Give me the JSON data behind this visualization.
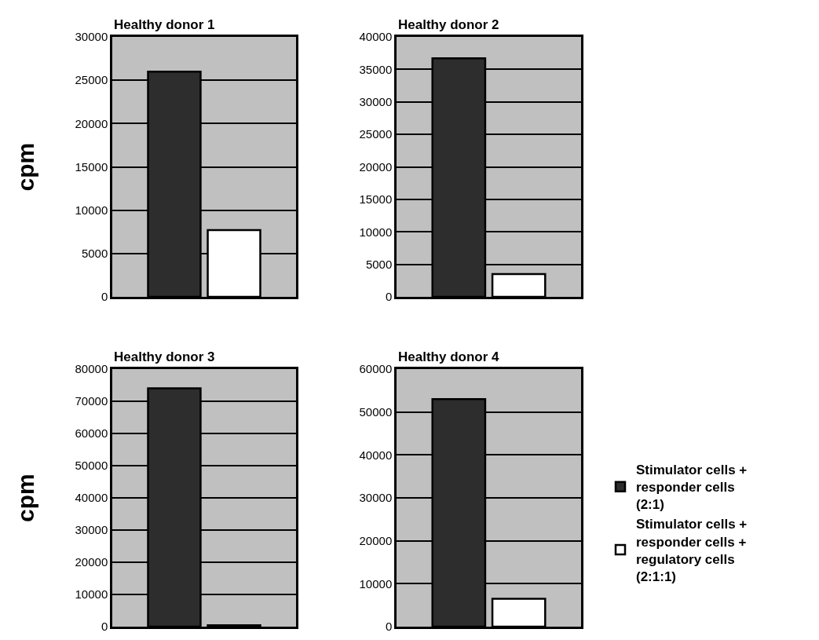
{
  "chart_data": [
    {
      "type": "bar",
      "title": "Healthy donor 1",
      "ylabel": "cpm",
      "categories": [
        null
      ],
      "series": [
        {
          "color": "#2d2d2d",
          "values": [
            26000
          ]
        },
        {
          "color": "#ffffff",
          "values": [
            7700
          ]
        }
      ],
      "ylim": [
        0,
        30000
      ],
      "yticks": [
        0,
        5000,
        10000,
        15000,
        20000,
        25000,
        30000
      ],
      "grid": "y"
    },
    {
      "type": "bar",
      "title": "Healthy donor 2",
      "categories": [
        null
      ],
      "series": [
        {
          "color": "#2d2d2d",
          "values": [
            36700
          ]
        },
        {
          "color": "#ffffff",
          "values": [
            3500
          ]
        }
      ],
      "ylim": [
        0,
        40000
      ],
      "yticks": [
        0,
        5000,
        10000,
        15000,
        20000,
        25000,
        30000,
        35000,
        40000
      ],
      "grid": "y"
    },
    {
      "type": "bar",
      "title": "Healthy donor 3",
      "ylabel": "cpm",
      "categories": [
        null
      ],
      "series": [
        {
          "color": "#2d2d2d",
          "values": [
            74000
          ]
        },
        {
          "color": "#ffffff",
          "values": [
            400
          ]
        }
      ],
      "ylim": [
        0,
        80000
      ],
      "yticks": [
        0,
        10000,
        20000,
        30000,
        40000,
        50000,
        60000,
        70000,
        80000
      ],
      "grid": "y"
    },
    {
      "type": "bar",
      "title": "Healthy donor 4",
      "categories": [
        null
      ],
      "series": [
        {
          "name": "Stimulator cells + responder cells (2:1)",
          "color": "#2d2d2d",
          "values": [
            53000
          ]
        },
        {
          "name": "Stimulator cells + responder cells + regulatory cells (2:1:1)",
          "color": "#ffffff",
          "values": [
            6500
          ]
        }
      ],
      "ylim": [
        0,
        60000
      ],
      "yticks": [
        0,
        10000,
        20000,
        30000,
        40000,
        50000,
        60000
      ],
      "grid": "y",
      "legend": "right"
    }
  ]
}
